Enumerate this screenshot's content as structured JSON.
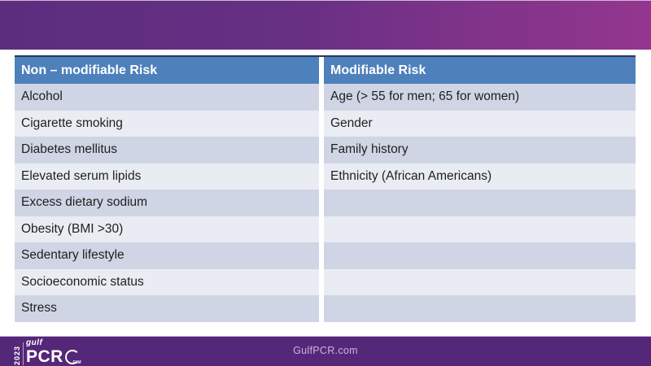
{
  "table": {
    "columns": [
      {
        "header": "Non – modifiable Risk"
      },
      {
        "header": "Modifiable Risk"
      }
    ],
    "rows": [
      [
        "Alcohol",
        "Age (> 55 for men; 65 for women)"
      ],
      [
        "Cigarette smoking",
        "Gender"
      ],
      [
        "Diabetes mellitus",
        "Family history"
      ],
      [
        "Elevated serum lipids",
        "Ethnicity (African Americans)"
      ],
      [
        "Excess dietary sodium",
        ""
      ],
      [
        "Obesity (BMI >30)",
        ""
      ],
      [
        "Sedentary lifestyle",
        ""
      ],
      [
        "Socioeconomic status",
        ""
      ],
      [
        "Stress",
        ""
      ]
    ]
  },
  "footer": {
    "website": "GulfPCR.com",
    "logo": {
      "year": "2023",
      "gulf": "gulf",
      "pcr": "PCR",
      "gim": "GIM"
    }
  },
  "colors": {
    "banner_gradient_left": "#5b2d7f",
    "banner_gradient_right": "#94368f",
    "header_blue": "#4e80bc",
    "table_top_border": "#26395c",
    "row_dark": "#cfd5e4",
    "row_light": "#e9ecf3",
    "footer_purple": "#552778",
    "footer_text": "#c9b4de"
  }
}
